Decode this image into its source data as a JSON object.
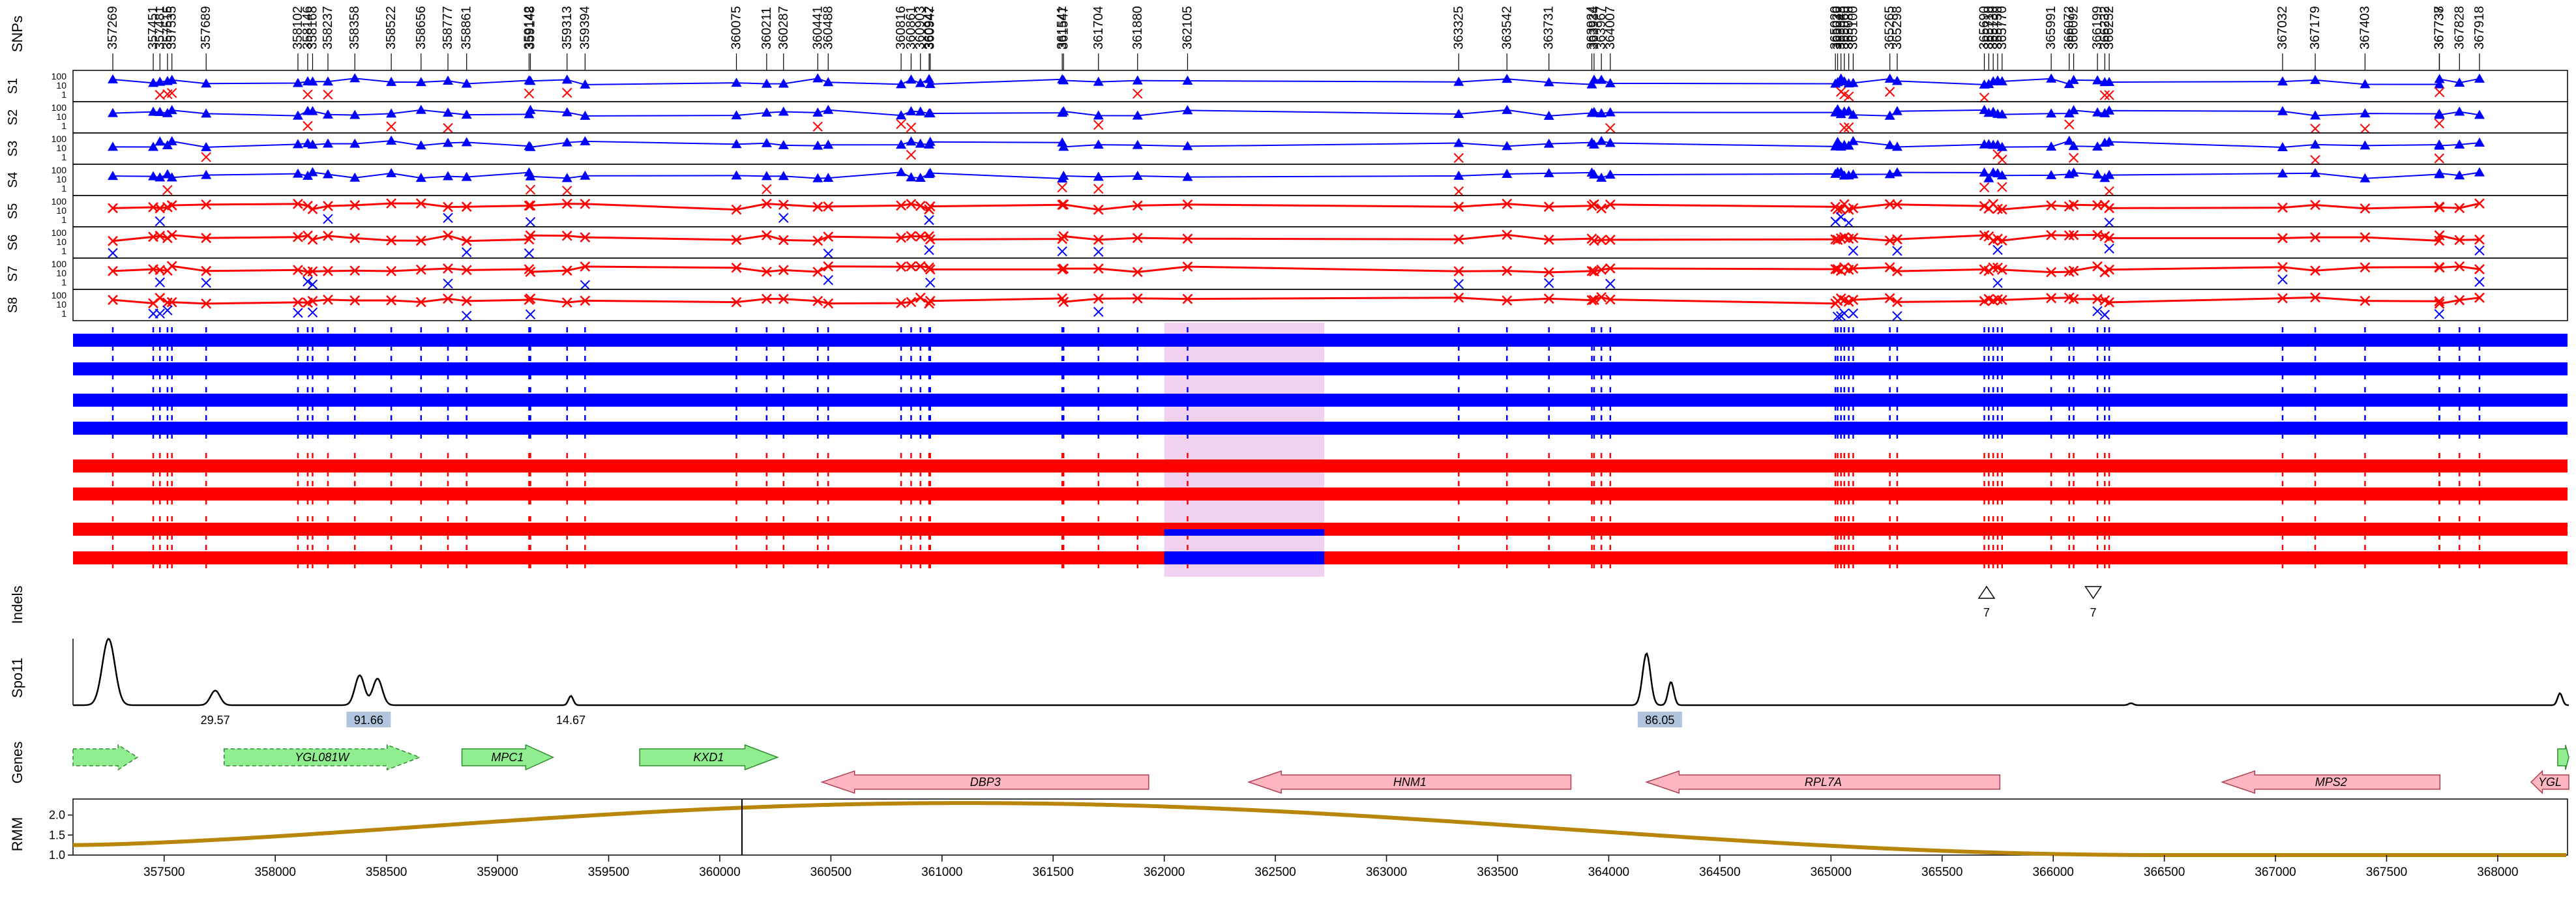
{
  "panel_labels": {
    "snps": "SNPs",
    "indels": "Indels",
    "spo11": "Spo11",
    "genes": "Genes",
    "rmm": "RMM"
  },
  "samples": [
    "S1",
    "S2",
    "S3",
    "S4",
    "S5",
    "S6",
    "S7",
    "S8"
  ],
  "parent_colors": {
    "S1": "#0000ff",
    "S2": "#0000ff",
    "S3": "#0000ff",
    "S4": "#0000ff",
    "S5": "#ff0000",
    "S6": "#ff0000",
    "S7": "#ff0000",
    "S8": "#ff0000"
  },
  "colors": {
    "blue": "#0000ff",
    "red": "#ff0000",
    "highlight": "#f0d2f0",
    "gene_forward": "#90ee90",
    "gene_reverse": "#ffb6c1",
    "rmm_line": "#b8860b",
    "spo11_label_bg": "#b0c4de"
  },
  "ylevels": [
    "100",
    "10",
    "1"
  ],
  "snp_positions": [
    357269,
    357451,
    357481,
    357515,
    357535,
    357689,
    358102,
    358146,
    358168,
    358237,
    358358,
    358522,
    358656,
    358777,
    358861,
    359142,
    359148,
    359313,
    359394,
    360075,
    360211,
    360287,
    360441,
    360488,
    360816,
    360861,
    360903,
    360942,
    360947,
    361541,
    361547,
    361704,
    361880,
    362105,
    363325,
    363542,
    363731,
    363924,
    363934,
    363967,
    364007,
    365020,
    365030,
    365045,
    365060,
    365080,
    365100,
    365265,
    365298,
    365690,
    365710,
    365730,
    365750,
    365770,
    365991,
    366072,
    366092,
    366199,
    366232,
    366252,
    367032,
    367179,
    367403,
    367737,
    367738,
    367828,
    367918
  ],
  "snp_tick_labels": [
    {
      "x": 357269,
      "t": "357269"
    },
    {
      "x": 357451,
      "t": "357451"
    },
    {
      "x": 357481,
      "t": "357481"
    },
    {
      "x": 357515,
      "t": "357515"
    },
    {
      "x": 357535,
      "t": "357535"
    },
    {
      "x": 357689,
      "t": "357689"
    },
    {
      "x": 358102,
      "t": "358102"
    },
    {
      "x": 358146,
      "t": "358146"
    },
    {
      "x": 358168,
      "t": "358168"
    },
    {
      "x": 358237,
      "t": "358237"
    },
    {
      "x": 358358,
      "t": "358358"
    },
    {
      "x": 358522,
      "t": "358522"
    },
    {
      "x": 358656,
      "t": "358656"
    },
    {
      "x": 358777,
      "t": "358777"
    },
    {
      "x": 358861,
      "t": "358861"
    },
    {
      "x": 359142,
      "t": "359142"
    },
    {
      "x": 359148,
      "t": "359148"
    },
    {
      "x": 359313,
      "t": "359313"
    },
    {
      "x": 359394,
      "t": "359394"
    },
    {
      "x": 360075,
      "t": "360075"
    },
    {
      "x": 360211,
      "t": "360211"
    },
    {
      "x": 360287,
      "t": "360287"
    },
    {
      "x": 360441,
      "t": "360441"
    },
    {
      "x": 360488,
      "t": "360488"
    },
    {
      "x": 360816,
      "t": "360816"
    },
    {
      "x": 360861,
      "t": "360861"
    },
    {
      "x": 360903,
      "t": "360903"
    },
    {
      "x": 360942,
      "t": "360942"
    },
    {
      "x": 360947,
      "t": "360947"
    },
    {
      "x": 361541,
      "t": "361541"
    },
    {
      "x": 361547,
      "t": "361547"
    },
    {
      "x": 361704,
      "t": "361704"
    },
    {
      "x": 361880,
      "t": "361880"
    },
    {
      "x": 362105,
      "t": "362105"
    },
    {
      "x": 363325,
      "t": "363325"
    },
    {
      "x": 363542,
      "t": "363542"
    },
    {
      "x": 363731,
      "t": "363731"
    },
    {
      "x": 363924,
      "t": "363924"
    },
    {
      "x": 363934,
      "t": "363934"
    },
    {
      "x": 363967,
      "t": "363967"
    },
    {
      "x": 364007,
      "t": "364007"
    },
    {
      "x": 365020,
      "t": "365020"
    },
    {
      "x": 365030,
      "t": "365030"
    },
    {
      "x": 365045,
      "t": "365045"
    },
    {
      "x": 365060,
      "t": "365060"
    },
    {
      "x": 365080,
      "t": "365080"
    },
    {
      "x": 365100,
      "t": "365100"
    },
    {
      "x": 365265,
      "t": "365265"
    },
    {
      "x": 365298,
      "t": "365298"
    },
    {
      "x": 365690,
      "t": "365690"
    },
    {
      "x": 365710,
      "t": "365710"
    },
    {
      "x": 365730,
      "t": "365730"
    },
    {
      "x": 365750,
      "t": "365750"
    },
    {
      "x": 365770,
      "t": "365770"
    },
    {
      "x": 365991,
      "t": "365991"
    },
    {
      "x": 366072,
      "t": "366072"
    },
    {
      "x": 366092,
      "t": "366092"
    },
    {
      "x": 366199,
      "t": "366199"
    },
    {
      "x": 366232,
      "t": "366232"
    },
    {
      "x": 366252,
      "t": "366252"
    },
    {
      "x": 367032,
      "t": "367032"
    },
    {
      "x": 367179,
      "t": "367179"
    },
    {
      "x": 367403,
      "t": "367403"
    },
    {
      "x": 367737,
      "t": "367737"
    },
    {
      "x": 367738,
      "t": "367738"
    },
    {
      "x": 367828,
      "t": "367828"
    },
    {
      "x": 367918,
      "t": "367918"
    }
  ],
  "highlight_region": [
    362000,
    362720
  ],
  "recombinant_segments": [
    {
      "sample": "S8",
      "from": 362000,
      "to": 362720,
      "color": "#0000ff"
    },
    {
      "sample": "S7",
      "from": 362000,
      "to": 362720,
      "color": "#0000ff",
      "part": "bottom"
    }
  ],
  "indels": [
    {
      "pos": 365700,
      "dir": "up",
      "label": "7"
    },
    {
      "pos": 366180,
      "dir": "down",
      "label": "7"
    }
  ],
  "spo11": {
    "peaks": [
      {
        "center": 357250,
        "height": 1.0,
        "width": 40
      },
      {
        "center": 357730,
        "height": 0.22,
        "width": 30
      },
      {
        "center": 358380,
        "height": 0.45,
        "width": 30
      },
      {
        "center": 358460,
        "height": 0.4,
        "width": 30
      },
      {
        "center": 359330,
        "height": 0.14,
        "width": 15
      },
      {
        "center": 364170,
        "height": 0.78,
        "width": 25
      },
      {
        "center": 364280,
        "height": 0.35,
        "width": 18
      },
      {
        "center": 366350,
        "height": 0.03,
        "width": 15
      },
      {
        "center": 368280,
        "height": 0.18,
        "width": 15
      }
    ],
    "labels": [
      {
        "x": 357730,
        "t": "29.57",
        "shaded": false
      },
      {
        "x": 358420,
        "t": "91.66",
        "shaded": true
      },
      {
        "x": 359330,
        "t": "14.67",
        "shaded": false
      },
      {
        "x": 364230,
        "t": "86.05",
        "shaded": true
      }
    ]
  },
  "genes": [
    {
      "name": "",
      "start": 357090,
      "end": 357380,
      "strand": "+",
      "row": 0,
      "dashed": true
    },
    {
      "name": "YGL081W",
      "start": 357770,
      "end": 358650,
      "strand": "+",
      "row": 0,
      "dashed": true
    },
    {
      "name": "MPC1",
      "start": 358840,
      "end": 359250,
      "strand": "+",
      "row": 0,
      "dashed": false
    },
    {
      "name": "KXD1",
      "start": 359640,
      "end": 360260,
      "strand": "+",
      "row": 0,
      "dashed": false
    },
    {
      "name": "DBP3",
      "start": 360460,
      "end": 361930,
      "strand": "-",
      "row": 1,
      "dashed": false
    },
    {
      "name": "HNM1",
      "start": 362380,
      "end": 363830,
      "strand": "-",
      "row": 1,
      "dashed": false
    },
    {
      "name": "RPL7A",
      "start": 364170,
      "end": 365760,
      "strand": "-",
      "row": 1,
      "dashed": false
    },
    {
      "name": "MPS2",
      "start": 366760,
      "end": 367740,
      "strand": "-",
      "row": 1,
      "dashed": false
    },
    {
      "name": "YGL",
      "start": 368150,
      "end": 368320,
      "strand": "-",
      "row": 1,
      "dashed": false
    },
    {
      "name": "",
      "start": 368270,
      "end": 368320,
      "strand": "+",
      "row": 0,
      "dashed": false
    }
  ],
  "rmm": {
    "yticks": [
      "1.0",
      "1.5",
      "2.0"
    ],
    "ylim": [
      1.0,
      2.4
    ],
    "peak_x": 361100,
    "peak_y": 2.3,
    "start_y": 1.25,
    "end_y": 1.0,
    "vline": 360100
  },
  "x_axis": {
    "min": 357090,
    "max": 368320,
    "ticks": [
      "357500",
      "358000",
      "358500",
      "359000",
      "359500",
      "360000",
      "360500",
      "361000",
      "361500",
      "362000",
      "362500",
      "363000",
      "363500",
      "364000",
      "364500",
      "365000",
      "365500",
      "366000",
      "366500",
      "367000",
      "367500",
      "368000"
    ]
  }
}
